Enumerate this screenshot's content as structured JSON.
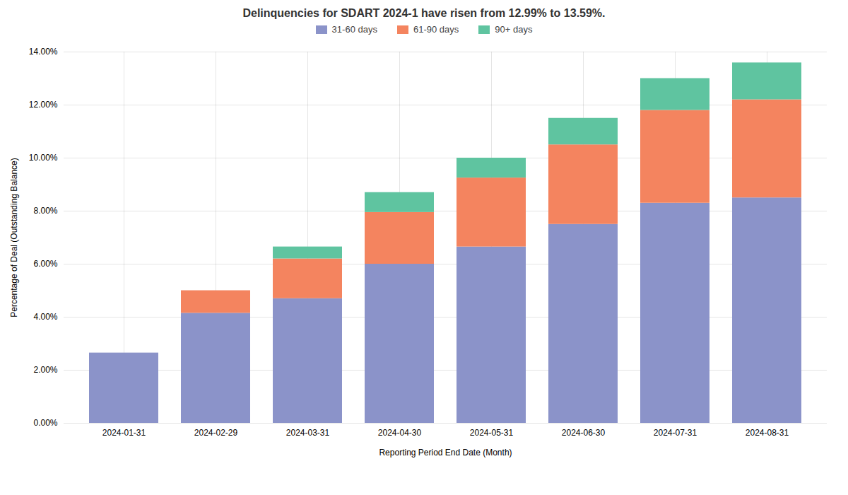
{
  "chart_data": {
    "type": "bar",
    "stacked": true,
    "title": "Delinquencies for SDART 2024-1 have risen from 12.99% to 13.59%.",
    "xlabel": "Reporting Period End Date (Month)",
    "ylabel": "Percentage of Deal (Outstanding Balance)",
    "categories": [
      "2024-01-31",
      "2024-02-29",
      "2024-03-31",
      "2024-04-30",
      "2024-05-31",
      "2024-06-30",
      "2024-07-31",
      "2024-08-31"
    ],
    "series": [
      {
        "name": "31-60 days",
        "color": "#8B93C9",
        "values": [
          0.0265,
          0.0415,
          0.047,
          0.06,
          0.0665,
          0.075,
          0.083,
          0.085
        ]
      },
      {
        "name": "61-90 days",
        "color": "#F4845F",
        "values": [
          0.0,
          0.0085,
          0.015,
          0.0195,
          0.026,
          0.03,
          0.035,
          0.037
        ]
      },
      {
        "name": "90+ days",
        "color": "#5FC4A0",
        "values": [
          0.0,
          0.0,
          0.0045,
          0.0075,
          0.0075,
          0.01,
          0.012,
          0.0139
        ]
      }
    ],
    "ylim": [
      0,
      0.14
    ],
    "yticks": [
      {
        "value": 0,
        "label": "0.00%"
      },
      {
        "value": 0.02,
        "label": "2.00%"
      },
      {
        "value": 0.04,
        "label": "4.00%"
      },
      {
        "value": 0.06,
        "label": "6.00%"
      },
      {
        "value": 0.08,
        "label": "8.00%"
      },
      {
        "value": 0.1,
        "label": "10.00%"
      },
      {
        "value": 0.12,
        "label": "12.00%"
      },
      {
        "value": 0.14,
        "label": "14.00%"
      }
    ],
    "grid": true,
    "legend": "upper center"
  }
}
